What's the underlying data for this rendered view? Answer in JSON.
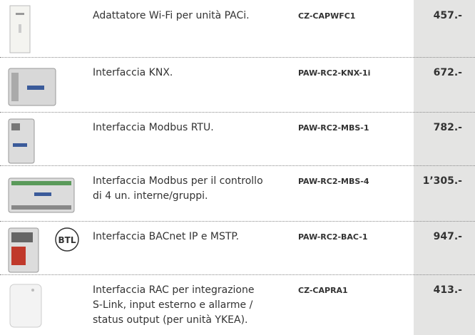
{
  "rows": [
    {
      "description": [
        "Adattatore Wi-Fi per unità PACi."
      ],
      "code": "CZ-CAPWFC1",
      "price": "457.-"
    },
    {
      "description": [
        "Interfaccia KNX."
      ],
      "code": "PAW-RC2-KNX-1i",
      "price": "672.-"
    },
    {
      "description": [
        "Interfaccia Modbus RTU."
      ],
      "code": "PAW-RC2-MBS-1",
      "price": "782.-"
    },
    {
      "description": [
        "Interfaccia Modbus per il controllo",
        "di 4 un. interne/gruppi."
      ],
      "code": "PAW-RC2-MBS-4",
      "price": "1’305.-"
    },
    {
      "description": [
        "Interfaccia BACnet IP e MSTP."
      ],
      "code": "PAW-RC2-BAC-1",
      "price": "947.-",
      "badge": "BTL"
    },
    {
      "description": [
        "Interfaccia RAC per integrazione",
        "S-Link, input esterno e allarme /",
        "status output (per unità YKEA)."
      ],
      "code": "CZ-CAPRA1",
      "price": "413.-"
    }
  ]
}
